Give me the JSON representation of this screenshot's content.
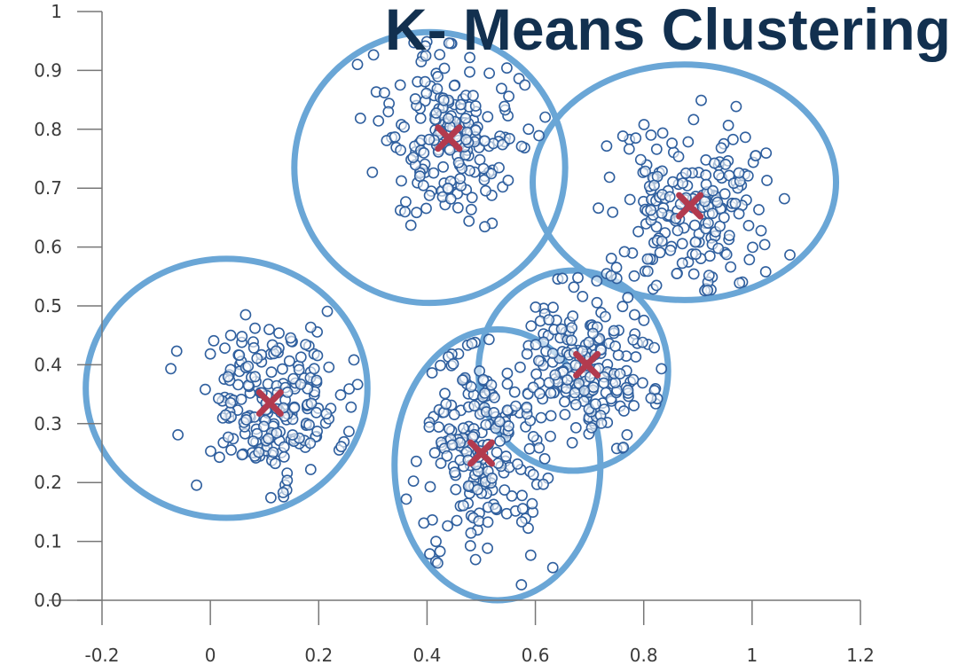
{
  "chart_data": {
    "type": "scatter",
    "title": "K- Means Clustering",
    "xlabel": "",
    "ylabel": "",
    "xlim": [
      -0.2,
      1.2
    ],
    "ylim": [
      0.0,
      1.0
    ],
    "x_ticks": [
      "-0.2",
      "0",
      "0.2",
      "0.4",
      "0.6",
      "0.8",
      "1",
      "1.2"
    ],
    "x_tick_values": [
      -0.2,
      0,
      0.2,
      0.4,
      0.6,
      0.8,
      1.0,
      1.2
    ],
    "y_ticks": [
      "0.0",
      "0.1",
      "0.2",
      "0.3",
      "0.4",
      "0.5",
      "0.6",
      "0.7",
      "0.8",
      "0.9",
      "1"
    ],
    "y_tick_values": [
      0.0,
      0.1,
      0.2,
      0.3,
      0.4,
      0.5,
      0.6,
      0.7,
      0.8,
      0.9,
      1.0
    ],
    "grid": false,
    "colors": {
      "points": "#2f5f9e",
      "clusters": "#6aa6d6",
      "centroids": "#b23a4e",
      "title": "#12304f"
    },
    "clusters": [
      {
        "centroid": [
          0.11,
          0.335
        ],
        "spread": [
          0.07,
          0.065
        ],
        "boundary_center": [
          0.03,
          0.36
        ],
        "boundary_radii": [
          0.26,
          0.22
        ],
        "count": 210
      },
      {
        "centroid": [
          0.44,
          0.785
        ],
        "spread": [
          0.065,
          0.075
        ],
        "boundary_center": [
          0.405,
          0.735
        ],
        "boundary_radii": [
          0.25,
          0.23
        ],
        "count": 210
      },
      {
        "centroid": [
          0.885,
          0.67
        ],
        "spread": [
          0.075,
          0.075
        ],
        "boundary_center": [
          0.875,
          0.71
        ],
        "boundary_radii": [
          0.28,
          0.2
        ],
        "count": 200
      },
      {
        "centroid": [
          0.5,
          0.25
        ],
        "spread": [
          0.06,
          0.09
        ],
        "boundary_center": [
          0.53,
          0.23
        ],
        "boundary_radii": [
          0.19,
          0.23
        ],
        "count": 220
      },
      {
        "centroid": [
          0.695,
          0.4
        ],
        "spread": [
          0.06,
          0.065
        ],
        "boundary_center": [
          0.67,
          0.39
        ],
        "boundary_radii": [
          0.175,
          0.17
        ],
        "count": 200
      }
    ]
  }
}
